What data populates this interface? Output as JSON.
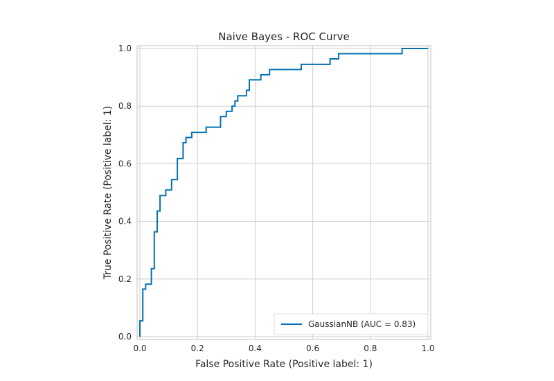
{
  "chart_data": {
    "type": "line",
    "title": "Naive Bayes - ROC Curve",
    "xlabel": "False Positive Rate (Positive label: 1)",
    "ylabel": "True Positive Rate (Positive label: 1)",
    "xlim": [
      0,
      1
    ],
    "ylim": [
      0,
      1
    ],
    "grid": true,
    "legend_position": "bottom-right",
    "x_ticks": [
      {
        "value": 0,
        "label": "0.0"
      },
      {
        "value": 0.2,
        "label": "0.2"
      },
      {
        "value": 0.4,
        "label": "0.4"
      },
      {
        "value": 0.6,
        "label": "0.6"
      },
      {
        "value": 0.8,
        "label": "0.8"
      },
      {
        "value": 1.0,
        "label": "1.0"
      }
    ],
    "y_ticks": [
      {
        "value": 0,
        "label": "0.0"
      },
      {
        "value": 0.2,
        "label": "0.2"
      },
      {
        "value": 0.4,
        "label": "0.4"
      },
      {
        "value": 0.6,
        "label": "0.6"
      },
      {
        "value": 0.8,
        "label": "0.8"
      },
      {
        "value": 1.0,
        "label": "1.0"
      }
    ],
    "series": [
      {
        "name": "GaussianNB (AUC = 0.83)",
        "color": "#0072b2",
        "x": [
          0.0,
          0.0,
          0.01,
          0.01,
          0.02,
          0.02,
          0.04,
          0.04,
          0.05,
          0.05,
          0.06,
          0.06,
          0.07,
          0.07,
          0.09,
          0.09,
          0.11,
          0.11,
          0.13,
          0.13,
          0.15,
          0.15,
          0.16,
          0.16,
          0.18,
          0.18,
          0.23,
          0.23,
          0.28,
          0.28,
          0.3,
          0.3,
          0.32,
          0.32,
          0.33,
          0.33,
          0.34,
          0.34,
          0.37,
          0.37,
          0.38,
          0.38,
          0.42,
          0.42,
          0.45,
          0.45,
          0.56,
          0.56,
          0.66,
          0.66,
          0.69,
          0.69,
          0.91,
          0.91,
          1.0
        ],
        "y": [
          0.0,
          0.055,
          0.055,
          0.165,
          0.165,
          0.182,
          0.182,
          0.236,
          0.236,
          0.364,
          0.364,
          0.436,
          0.436,
          0.49,
          0.49,
          0.509,
          0.509,
          0.545,
          0.545,
          0.618,
          0.618,
          0.673,
          0.673,
          0.691,
          0.691,
          0.709,
          0.709,
          0.727,
          0.727,
          0.764,
          0.764,
          0.782,
          0.782,
          0.8,
          0.8,
          0.818,
          0.818,
          0.836,
          0.836,
          0.855,
          0.855,
          0.891,
          0.891,
          0.909,
          0.909,
          0.927,
          0.927,
          0.945,
          0.945,
          0.964,
          0.964,
          0.982,
          0.982,
          1.0,
          1.0
        ]
      }
    ]
  }
}
